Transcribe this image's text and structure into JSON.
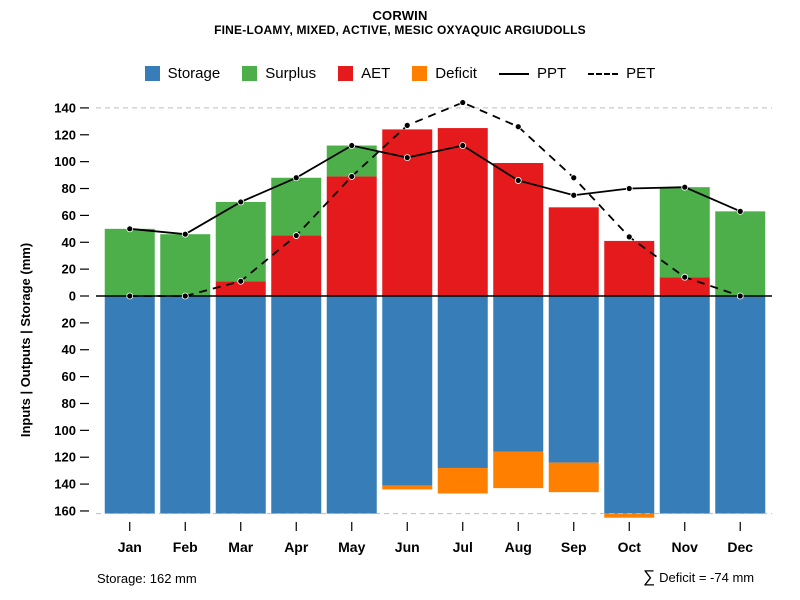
{
  "header": {
    "title": "CORWIN",
    "subtitle": "FINE-LOAMY, MIXED, ACTIVE, MESIC OXYAQUIC ARGIUDOLLS"
  },
  "legend": {
    "items": [
      {
        "label": "Storage",
        "color": "#377EB8",
        "type": "swatch"
      },
      {
        "label": "Surplus",
        "color": "#4DAF4A",
        "type": "swatch"
      },
      {
        "label": "AET",
        "color": "#E41A1C",
        "type": "swatch"
      },
      {
        "label": "Deficit",
        "color": "#FF7F00",
        "type": "swatch"
      },
      {
        "label": "PPT",
        "color": "#000000",
        "type": "line-solid"
      },
      {
        "label": "PET",
        "color": "#000000",
        "type": "line-dashed"
      }
    ]
  },
  "y_axis": {
    "label": "Inputs | Outputs | Storage  (mm)",
    "ticks": [
      {
        "value": 140,
        "label": "140"
      },
      {
        "value": 120,
        "label": "120"
      },
      {
        "value": 100,
        "label": "100"
      },
      {
        "value": 80,
        "label": "80"
      },
      {
        "value": 60,
        "label": "60"
      },
      {
        "value": 40,
        "label": "40"
      },
      {
        "value": 20,
        "label": "20"
      },
      {
        "value": 0,
        "label": "0"
      },
      {
        "value": -20,
        "label": "20"
      },
      {
        "value": -40,
        "label": "40"
      },
      {
        "value": -60,
        "label": "60"
      },
      {
        "value": -80,
        "label": "80"
      },
      {
        "value": -100,
        "label": "100"
      },
      {
        "value": -120,
        "label": "120"
      },
      {
        "value": -140,
        "label": "140"
      },
      {
        "value": -160,
        "label": "160"
      }
    ]
  },
  "footer": {
    "storage_note": "Storage: 162 mm",
    "sum_symbol": "∑",
    "deficit_note": "Deficit = -74 mm"
  },
  "chart_data": {
    "type": "bar",
    "title": "CORWIN",
    "subtitle": "FINE-LOAMY, MIXED, ACTIVE, MESIC OXYAQUIC ARGIUDOLLS",
    "ylabel": "Inputs | Outputs | Storage  (mm)",
    "xlabel": "",
    "ylim": [
      -170,
      150
    ],
    "legend_position": "top",
    "grid": "dashed reference lines at y=140 and at storage capacity (-162)",
    "categories": [
      "Jan",
      "Feb",
      "Mar",
      "Apr",
      "May",
      "Jun",
      "Jul",
      "Aug",
      "Sep",
      "Oct",
      "Nov",
      "Dec"
    ],
    "colors": {
      "storage": "#377EB8",
      "surplus": "#4DAF4A",
      "aet": "#E41A1C",
      "deficit": "#FF7F00",
      "ppt": "#000000",
      "pet": "#000000",
      "gridline": "#BDBDBD"
    },
    "bars": {
      "aet": [
        0,
        0,
        11,
        45,
        89,
        124,
        125,
        99,
        66,
        41,
        14,
        0
      ],
      "surplus": [
        50,
        46,
        59,
        43,
        23,
        0,
        0,
        0,
        0,
        0,
        67,
        63
      ],
      "storage": [
        162,
        162,
        162,
        162,
        162,
        141,
        128,
        116,
        124,
        162,
        162,
        162
      ],
      "deficit": [
        0,
        0,
        0,
        0,
        0,
        3,
        19,
        27,
        22,
        3,
        0,
        0
      ]
    },
    "lines": {
      "ppt": [
        50,
        46,
        70,
        88,
        112,
        103,
        112,
        86,
        75,
        80,
        81,
        63
      ],
      "pet": [
        0,
        0,
        11,
        45,
        89,
        127,
        144,
        126,
        88,
        44,
        14,
        0
      ]
    },
    "storage_capacity_mm": 162,
    "deficit_total_mm": -74,
    "gridline_top": 140
  }
}
